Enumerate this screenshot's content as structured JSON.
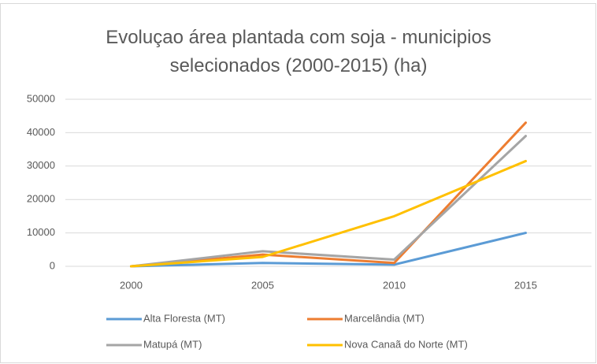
{
  "chart_data": {
    "type": "line",
    "title": "Evoluçao área plantada com soja - municipios selecionados (2000-2015) (ha)",
    "categories": [
      "2000",
      "2005",
      "2010",
      "2015"
    ],
    "series": [
      {
        "name": "Alta Floresta (MT)",
        "color": "#5b9bd5",
        "values": [
          0,
          1000,
          500,
          10000
        ]
      },
      {
        "name": "Marcelândia (MT)",
        "color": "#ed7d31",
        "values": [
          0,
          3500,
          1000,
          43000
        ]
      },
      {
        "name": "Matupá (MT)",
        "color": "#a5a5a5",
        "values": [
          0,
          4500,
          2000,
          39000
        ]
      },
      {
        "name": "Nova Canaã do Norte (MT)",
        "color": "#ffc000",
        "values": [
          0,
          2800,
          15000,
          31500
        ]
      }
    ],
    "ylim": [
      0,
      50000
    ],
    "yticks": [
      0,
      10000,
      20000,
      30000,
      40000,
      50000
    ],
    "grid": true,
    "legend": "bottom"
  }
}
